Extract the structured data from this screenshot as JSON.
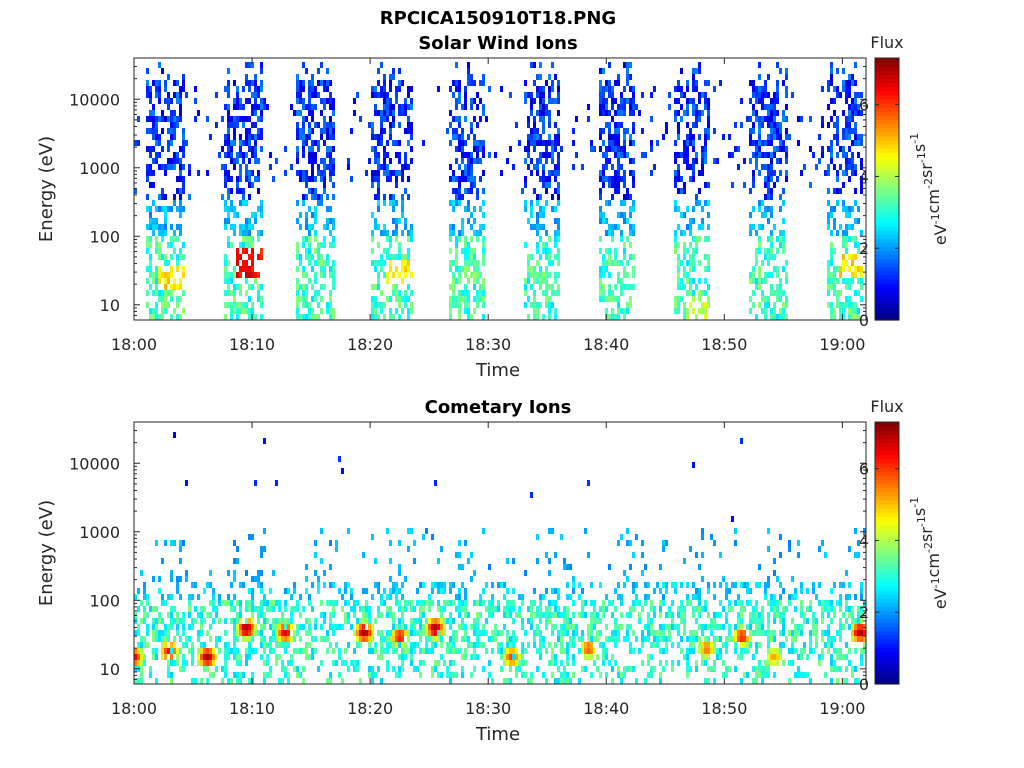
{
  "figure_title": "RPCICA150910T18.PNG",
  "chart_data": [
    {
      "type": "heatmap",
      "title": "Solar Wind Ions",
      "xlabel": "Time",
      "ylabel": "Energy (eV)",
      "x_ticks": [
        "18:00",
        "18:10",
        "18:20",
        "18:30",
        "18:40",
        "18:50",
        "19:00"
      ],
      "x_range": [
        "18:00",
        "19:02"
      ],
      "y_scale": "log",
      "y_ticks": [
        "10",
        "100",
        "1000",
        "10000"
      ],
      "y_range": [
        6,
        40000
      ],
      "colorbar": {
        "title": "Flux",
        "label": "eV-1 cm-2 sr-1 s-1",
        "range": [
          0,
          7.3
        ],
        "ticks": [
          "0",
          "2",
          "4",
          "6"
        ]
      },
      "bursts": [
        {
          "start_min": 1.0,
          "end_min": 4.2,
          "peak_energy_ev": 25,
          "peak_flux": 5.2
        },
        {
          "start_min": 7.5,
          "end_min": 10.8,
          "peak_energy_ev": 42,
          "peak_flux": 6.8
        },
        {
          "start_min": 13.8,
          "end_min": 17.0,
          "peak_energy_ev": 20,
          "peak_flux": 3.6
        },
        {
          "start_min": 20.2,
          "end_min": 23.6,
          "peak_energy_ev": 32,
          "peak_flux": 5.0
        },
        {
          "start_min": 26.6,
          "end_min": 29.8,
          "peak_energy_ev": 30,
          "peak_flux": 4.0
        },
        {
          "start_min": 33.0,
          "end_min": 36.2,
          "peak_energy_ev": 18,
          "peak_flux": 3.8
        },
        {
          "start_min": 39.5,
          "end_min": 42.5,
          "peak_energy_ev": 20,
          "peak_flux": 3.5
        },
        {
          "start_min": 45.8,
          "end_min": 48.8,
          "peak_energy_ev": 8,
          "peak_flux": 4.5
        },
        {
          "start_min": 52.2,
          "end_min": 55.4,
          "peak_energy_ev": 18,
          "peak_flux": 3.5
        },
        {
          "start_min": 58.6,
          "end_min": 61.8,
          "peak_energy_ev": 38,
          "peak_flux": 5.2
        }
      ]
    },
    {
      "type": "heatmap",
      "title": "Cometary Ions",
      "xlabel": "Time",
      "ylabel": "Energy (eV)",
      "x_ticks": [
        "18:00",
        "18:10",
        "18:20",
        "18:30",
        "18:40",
        "18:50",
        "19:00"
      ],
      "x_range": [
        "18:00",
        "19:02"
      ],
      "y_scale": "log",
      "y_ticks": [
        "10",
        "100",
        "1000",
        "10000"
      ],
      "y_range": [
        6,
        40000
      ],
      "colorbar": {
        "title": "Flux",
        "label": "eV-1 cm-2 sr-1 s-1",
        "range": [
          0,
          7.3
        ],
        "ticks": [
          "0",
          "2",
          "4",
          "6"
        ]
      },
      "hotspots": [
        {
          "time_min": 0.0,
          "energy_ev": 15,
          "flux": 6.5
        },
        {
          "time_min": 3.0,
          "energy_ev": 18,
          "flux": 6.4
        },
        {
          "time_min": 6.2,
          "energy_ev": 15,
          "flux": 7.0
        },
        {
          "time_min": 9.5,
          "energy_ev": 40,
          "flux": 7.0
        },
        {
          "time_min": 12.8,
          "energy_ev": 35,
          "flux": 6.6
        },
        {
          "time_min": 19.5,
          "energy_ev": 35,
          "flux": 7.0
        },
        {
          "time_min": 22.5,
          "energy_ev": 30,
          "flux": 6.3
        },
        {
          "time_min": 25.5,
          "energy_ev": 40,
          "flux": 7.0
        },
        {
          "time_min": 32.0,
          "energy_ev": 15,
          "flux": 6.0
        },
        {
          "time_min": 38.5,
          "energy_ev": 20,
          "flux": 5.8
        },
        {
          "time_min": 48.5,
          "energy_ev": 20,
          "flux": 5.6
        },
        {
          "time_min": 51.5,
          "energy_ev": 30,
          "flux": 6.2
        },
        {
          "time_min": 54.2,
          "energy_ev": 15,
          "flux": 5.2
        },
        {
          "time_min": 61.5,
          "energy_ev": 35,
          "flux": 7.0
        }
      ]
    }
  ]
}
